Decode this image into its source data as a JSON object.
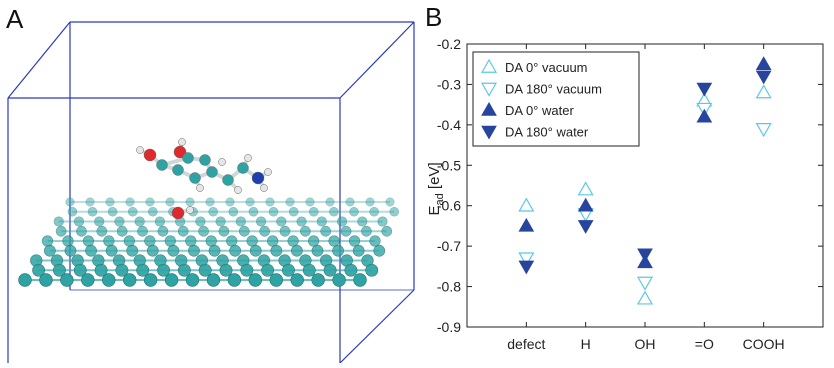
{
  "panel_a": {
    "letter": "A",
    "illustration": "dopamine-molecule-on-graphene-sheet-in-simulation-box"
  },
  "panel_b": {
    "letter": "B"
  },
  "colors": {
    "light_blue": "#5bc8e8",
    "dark_blue": "#27459c",
    "box_blue": "#2a3bbd",
    "carbon": "#2fa3a3",
    "oxygen": "#e0292c",
    "nitrogen": "#1f3fb0",
    "hydrogen": "#e6e6e6"
  },
  "chart_data": {
    "type": "scatter",
    "categories": [
      "defect",
      "H",
      "OH",
      "=O",
      "COOH"
    ],
    "ylabel_main": "E",
    "ylabel_sub": "ad",
    "ylabel_unit": " [eV]",
    "ylim": [
      -0.9,
      -0.2
    ],
    "yticks": [
      -0.9,
      -0.8,
      -0.7,
      -0.6,
      -0.5,
      -0.4,
      -0.3,
      -0.2
    ],
    "ytick_labels": [
      "-0.9",
      "-0.8",
      "-0.7",
      "-0.6",
      "-0.5",
      "-0.4",
      "-0.3",
      "-0.2"
    ],
    "grid": false,
    "legend_position": "top-left",
    "series": [
      {
        "name": "DA 0° vacuum",
        "marker": "triangle-up-open",
        "color": "#5bc8e8",
        "values": [
          -0.6,
          -0.56,
          -0.83,
          -0.34,
          -0.32
        ]
      },
      {
        "name": "DA 180° vacuum",
        "marker": "triangle-down-open",
        "color": "#5bc8e8",
        "values": [
          -0.73,
          -0.62,
          -0.79,
          -0.36,
          -0.41
        ]
      },
      {
        "name": "DA 0° water",
        "marker": "triangle-up-filled",
        "color": "#27459c",
        "values": [
          -0.65,
          -0.6,
          -0.74,
          -0.38,
          -0.25
        ]
      },
      {
        "name": "DA 180° water",
        "marker": "triangle-down-filled",
        "color": "#27459c",
        "values": [
          -0.75,
          -0.65,
          -0.72,
          -0.31,
          -0.28
        ]
      }
    ]
  }
}
